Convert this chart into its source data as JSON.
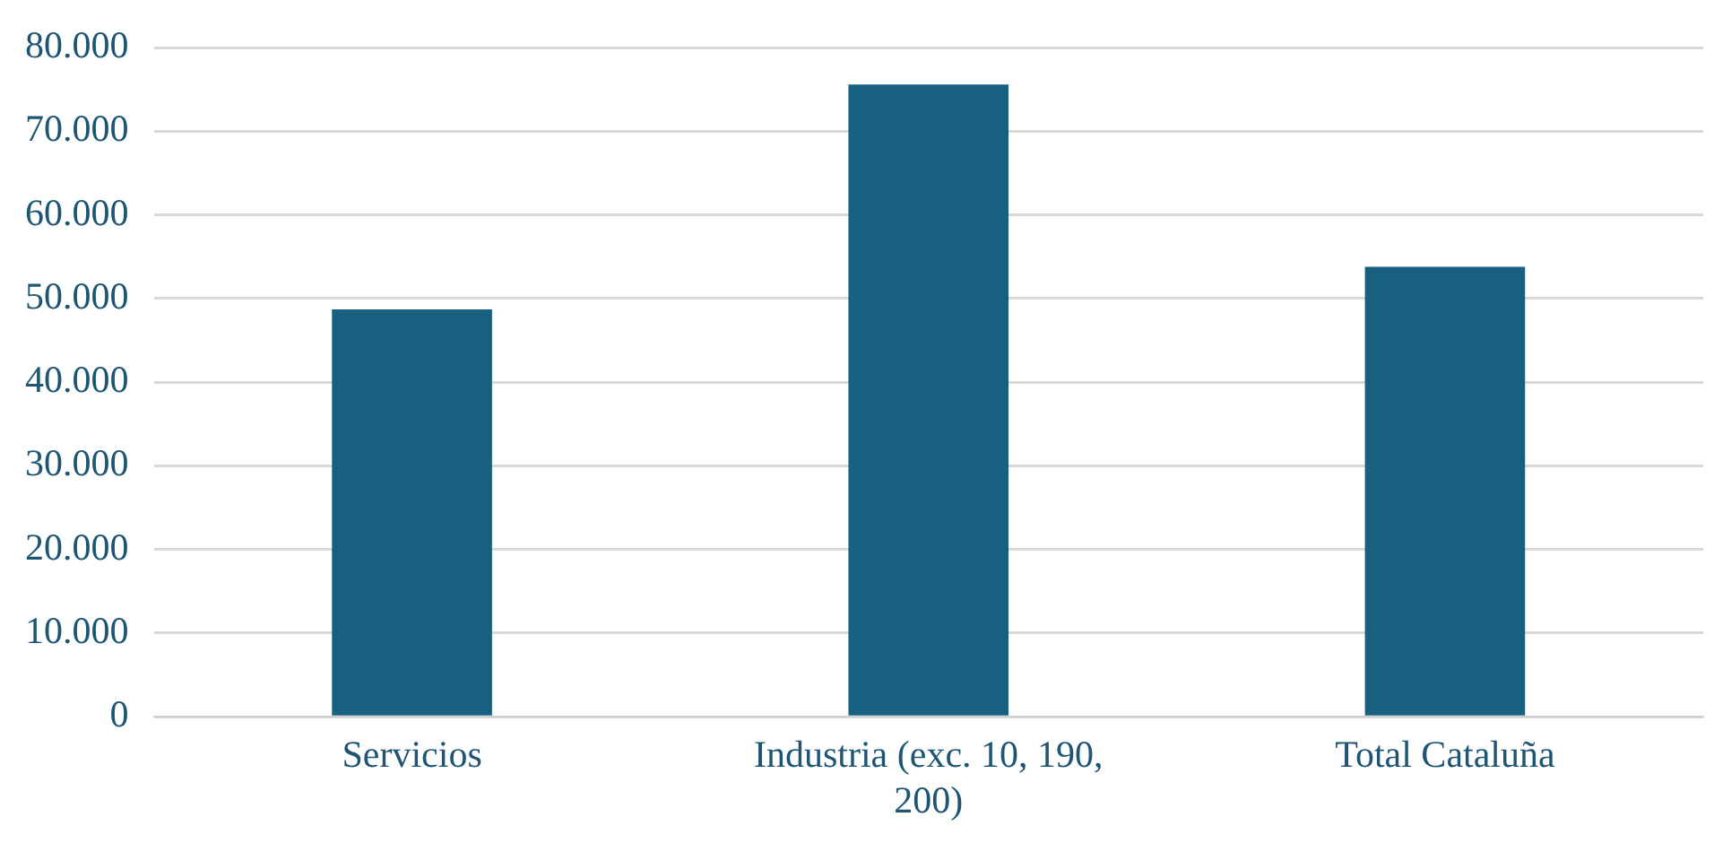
{
  "chart_data": {
    "type": "bar",
    "categories": [
      "Servicios",
      "Industria (exc. 10, 190, 200)",
      "Total Cataluña"
    ],
    "values": [
      48700,
      75600,
      53800
    ],
    "color": "#17607f",
    "ylim": [
      0,
      80000
    ],
    "yticks": [
      {
        "value": 0,
        "label": "0"
      },
      {
        "value": 10000,
        "label": "10.000"
      },
      {
        "value": 20000,
        "label": "20.000"
      },
      {
        "value": 30000,
        "label": "30.000"
      },
      {
        "value": 40000,
        "label": "40.000"
      },
      {
        "value": 50000,
        "label": "50.000"
      },
      {
        "value": 60000,
        "label": "60.000"
      },
      {
        "value": 70000,
        "label": "70.000"
      },
      {
        "value": 80000,
        "label": "80.000"
      }
    ],
    "grid": "y"
  }
}
